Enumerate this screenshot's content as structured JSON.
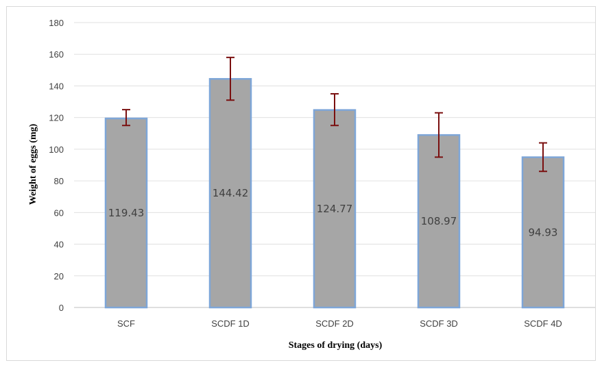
{
  "chart_data": {
    "type": "bar",
    "categories": [
      "SCF",
      "SCDF 1D",
      "SCDF 2D",
      "SCDF 3D",
      "SCDF 4D"
    ],
    "values": [
      119.43,
      144.42,
      124.77,
      108.97,
      94.93
    ],
    "value_labels": [
      "119.43",
      "144.42",
      "124.77",
      "108.97",
      "94.93"
    ],
    "error_low": [
      115,
      131,
      115,
      95,
      86
    ],
    "error_high": [
      125,
      158,
      135,
      123,
      104
    ],
    "xlabel": "Stages of drying (days)",
    "ylabel": "Weight of eggs (mg)",
    "ylim": [
      0,
      180
    ],
    "yticks": [
      "0",
      "20",
      "40",
      "60",
      "80",
      "100",
      "120",
      "140",
      "160",
      "180"
    ],
    "grid": true,
    "legend": "none",
    "colors": {
      "bar_fill": "#a6a6a6",
      "bar_edge": "#7ea6d8",
      "error_bar": "#7a0f0f",
      "grid": "#e0e0e0"
    }
  }
}
